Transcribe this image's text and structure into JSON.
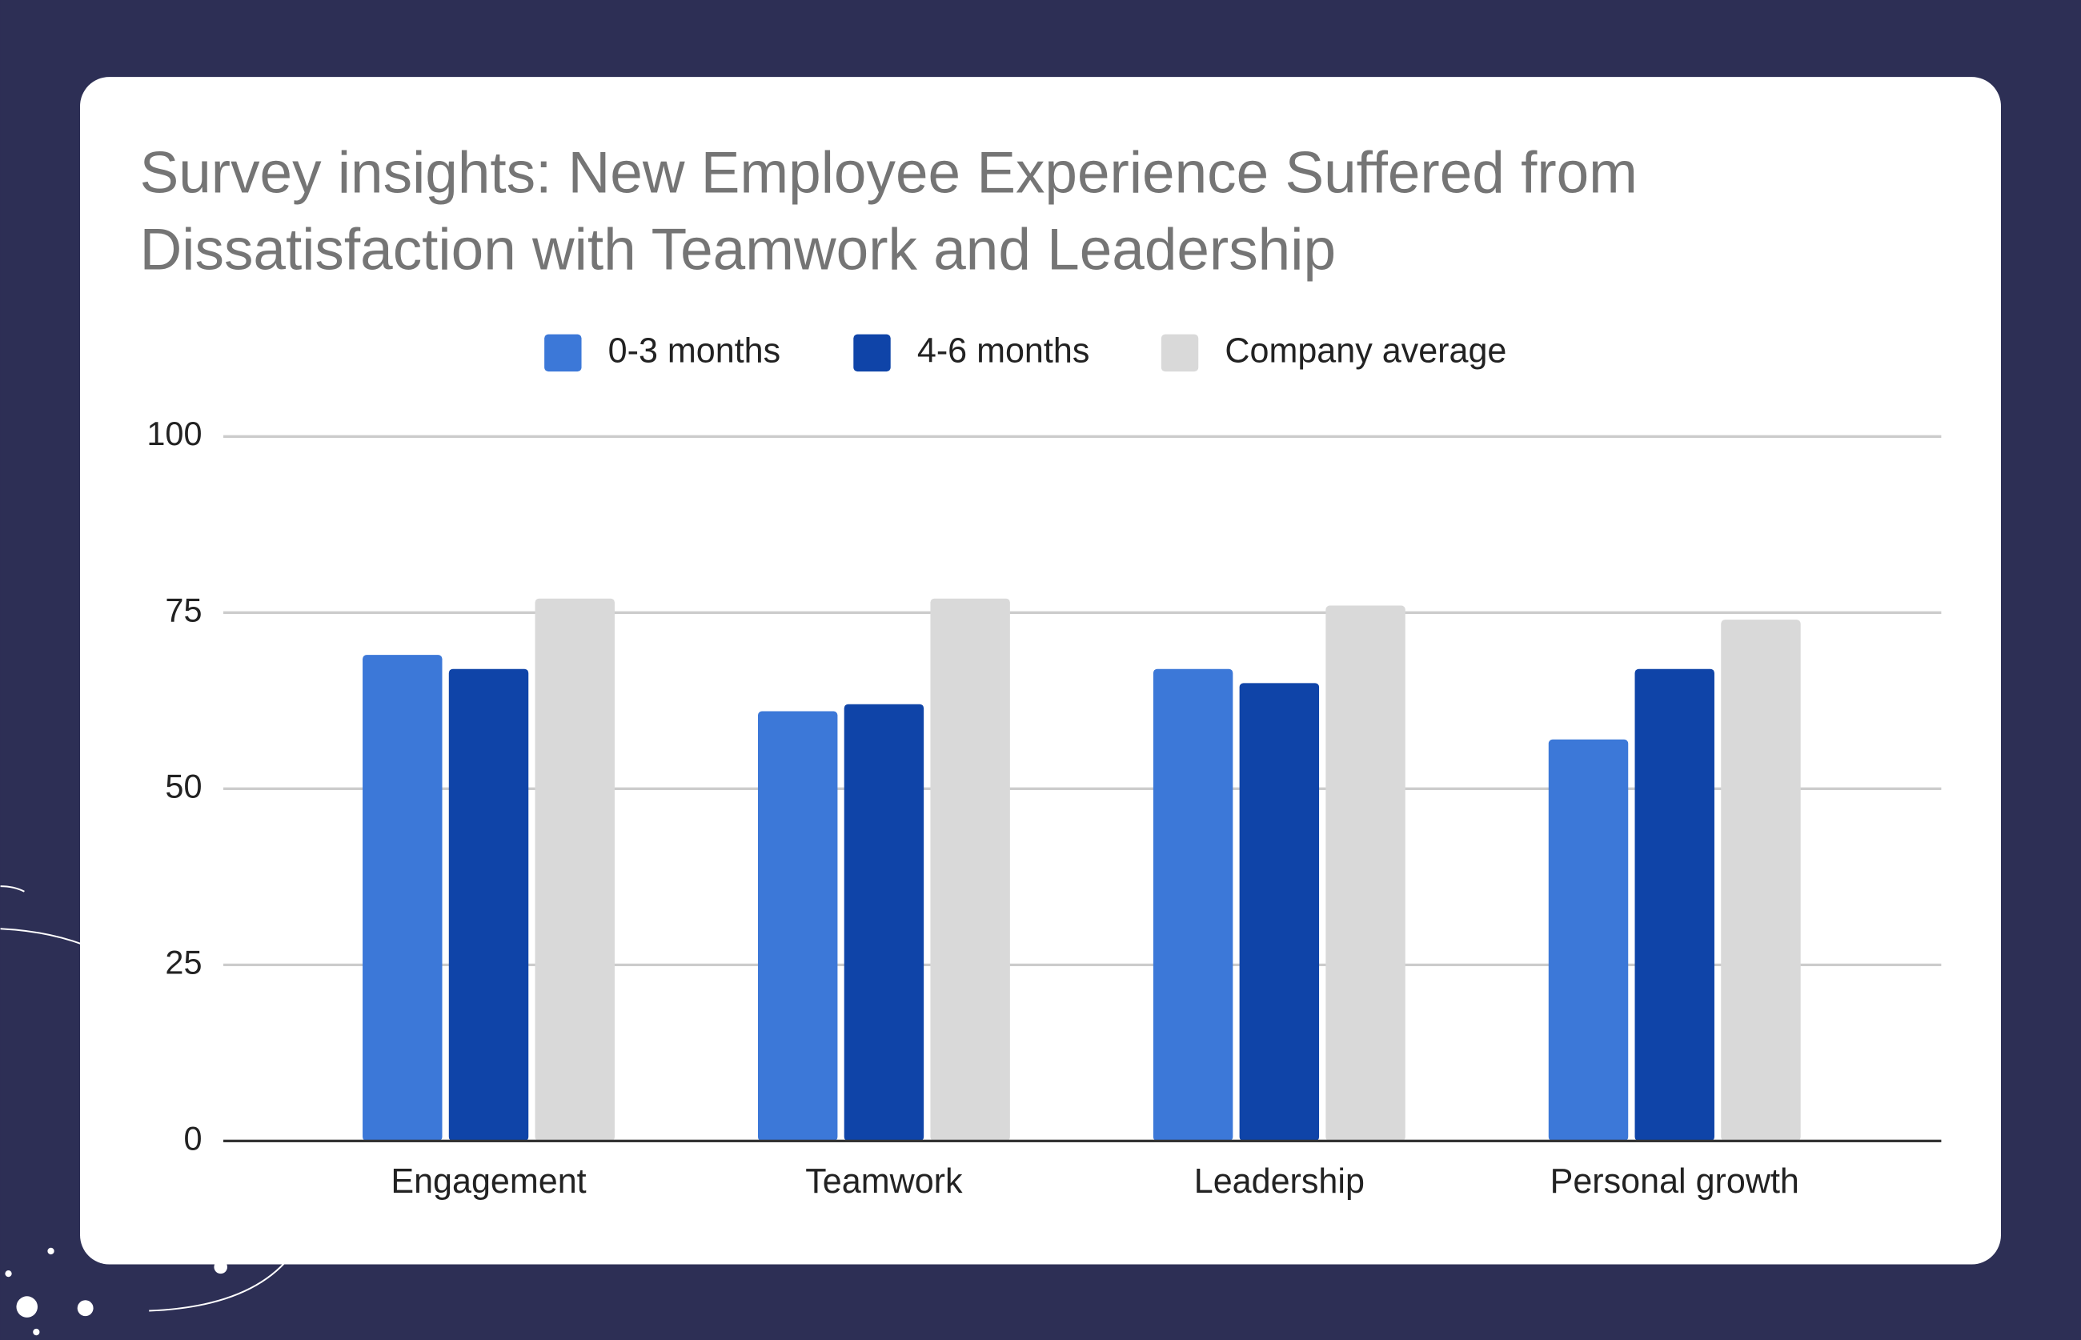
{
  "chart_data": {
    "type": "bar",
    "title": "Survey insights: New Employee Experience Suffered from Dissatisfaction with Teamwork and Leadership",
    "categories": [
      "Engagement",
      "Teamwork",
      "Leadership",
      "Personal growth"
    ],
    "series": [
      {
        "name": "0-3 months",
        "color": "#3c78d8",
        "values": [
          69,
          61,
          67,
          57
        ]
      },
      {
        "name": "4-6 months",
        "color": "#0f44a8",
        "values": [
          67,
          62,
          65,
          67
        ]
      },
      {
        "name": "Company average",
        "color": "#d9d9d9",
        "values": [
          77,
          77,
          76,
          74
        ]
      }
    ],
    "ylim": [
      0,
      100
    ],
    "yticks": [
      0,
      25,
      50,
      75,
      100
    ],
    "grid": true,
    "legend": "top"
  }
}
